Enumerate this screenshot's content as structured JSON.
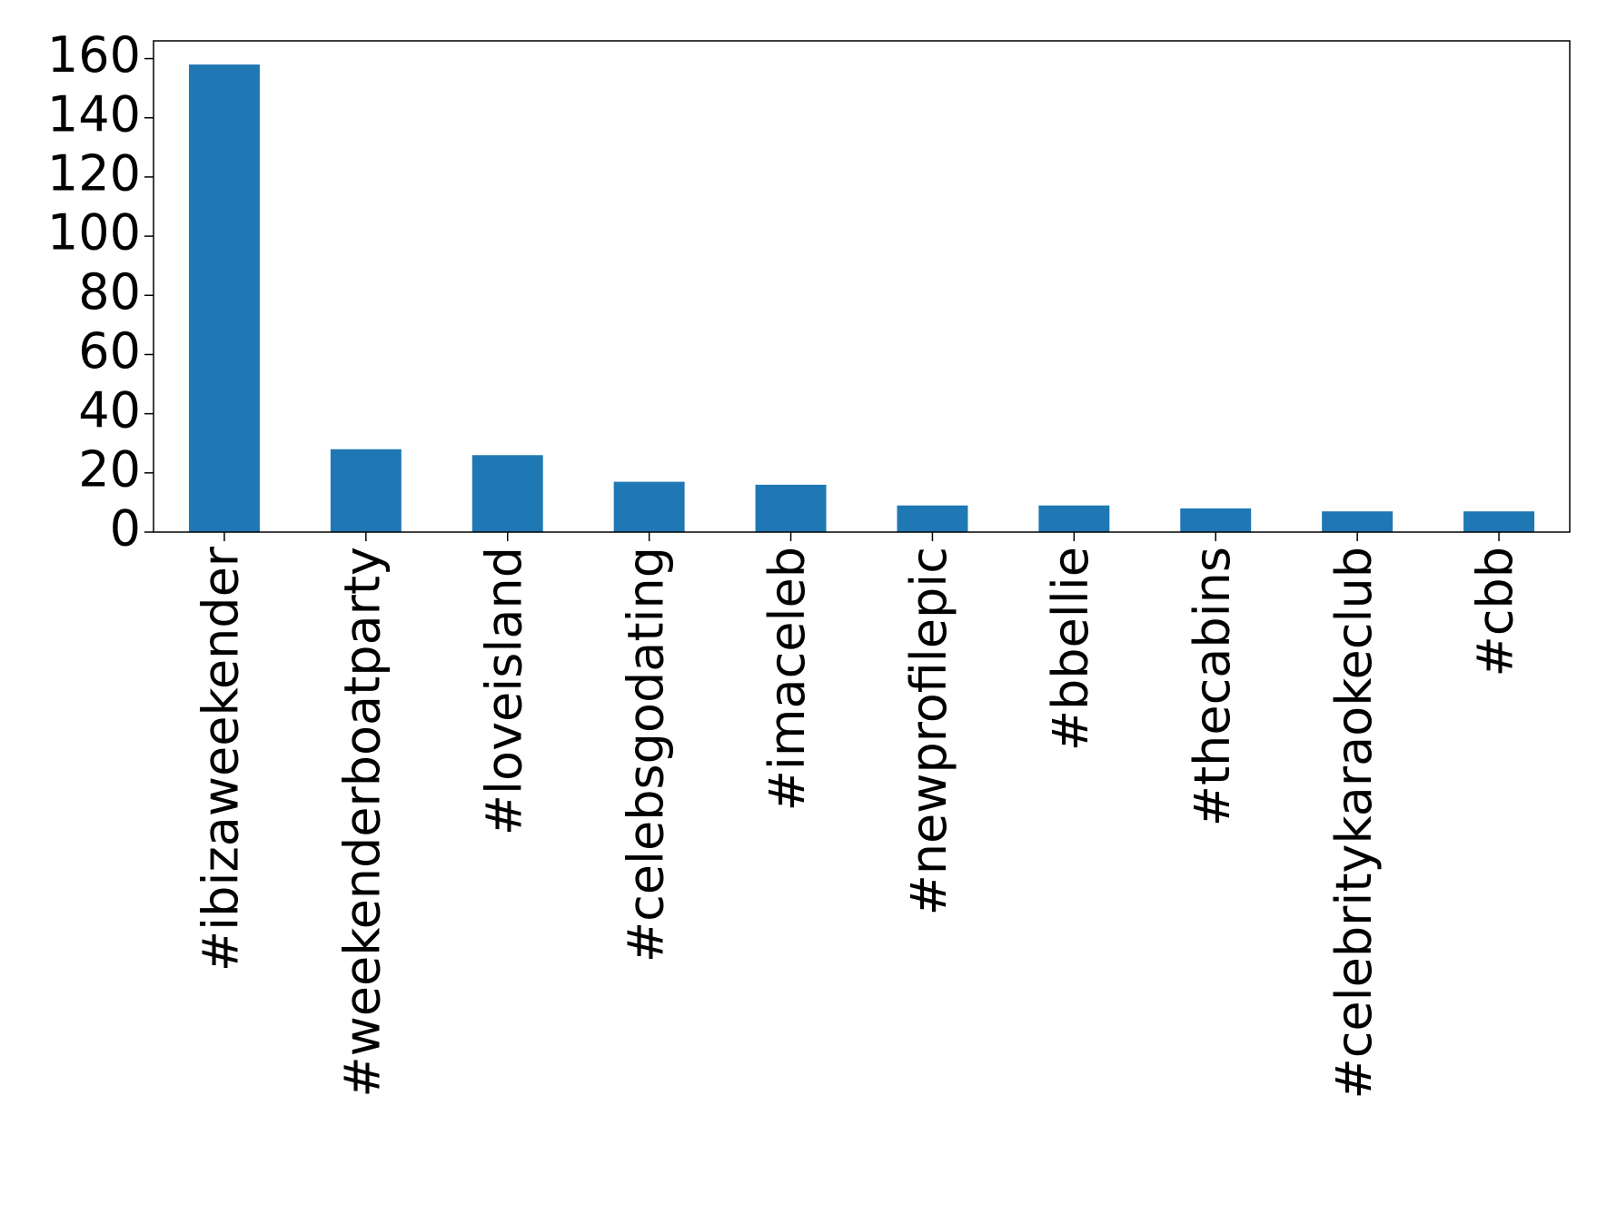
{
  "chart_data": {
    "type": "bar",
    "categories": [
      "#ibizaweekender",
      "#weekenderboatparty",
      "#loveisland",
      "#celebsgodating",
      "#imaceleb",
      "#newprofilepic",
      "#bbellie",
      "#thecabins",
      "#celebritykaraokeclub",
      "#cbb"
    ],
    "values": [
      158,
      28,
      26,
      17,
      16,
      9,
      9,
      8,
      7,
      7
    ],
    "color": "#1f77b4",
    "ylim": [
      0,
      166
    ],
    "yticks": [
      0,
      20,
      40,
      60,
      80,
      100,
      120,
      140,
      160
    ],
    "grid": false
  }
}
